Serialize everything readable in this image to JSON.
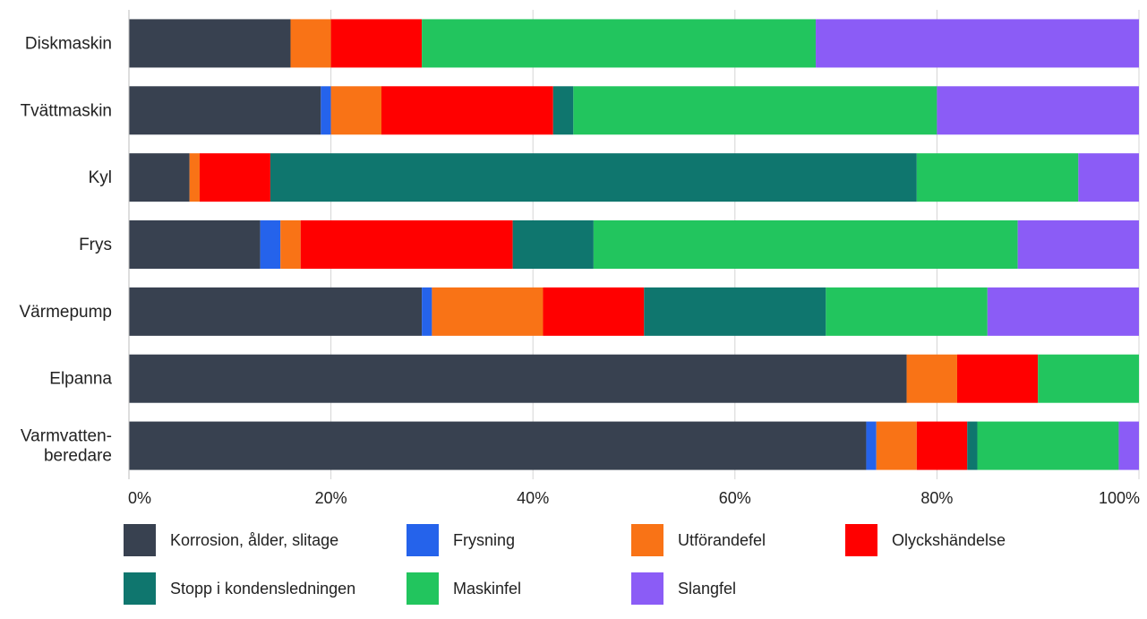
{
  "chart_data": {
    "type": "bar",
    "orientation": "horizontal",
    "stacked": true,
    "normalized": true,
    "categories": [
      [
        "Diskmaskin"
      ],
      [
        "Tvättmaskin"
      ],
      [
        "Kyl"
      ],
      [
        "Frys"
      ],
      [
        "Värmepump"
      ],
      [
        "Elpanna"
      ],
      [
        "Varmvatten-",
        "beredare"
      ]
    ],
    "series": [
      {
        "name": "Korrosion, ålder, slitage",
        "color": "#384150",
        "values": [
          16,
          19,
          6,
          13,
          29,
          77,
          73
        ]
      },
      {
        "name": "Frysning",
        "color": "#2563eb",
        "values": [
          0,
          1,
          0,
          2,
          1,
          0,
          1
        ]
      },
      {
        "name": "Utförandefel",
        "color": "#f97316",
        "values": [
          4,
          5,
          1,
          2,
          11,
          5,
          4
        ]
      },
      {
        "name": "Olyckshändelse",
        "color": "#ff0000",
        "values": [
          9,
          17,
          7,
          21,
          10,
          8,
          5
        ]
      },
      {
        "name": "Stopp i kondensledningen",
        "color": "#0f766e",
        "values": [
          0,
          2,
          64,
          8,
          18,
          0,
          1
        ]
      },
      {
        "name": "Maskinfel",
        "color": "#22c55e",
        "values": [
          39,
          36,
          16,
          42,
          16,
          10,
          14
        ]
      },
      {
        "name": "Slangfel",
        "color": "#8b5cf6",
        "values": [
          32,
          20,
          6,
          12,
          15,
          0,
          2
        ]
      }
    ],
    "xlim": [
      0,
      100
    ],
    "xticks": [
      "0%",
      "20%",
      "40%",
      "60%",
      "80%",
      "100%"
    ],
    "grid": true,
    "legend_position": "bottom"
  }
}
